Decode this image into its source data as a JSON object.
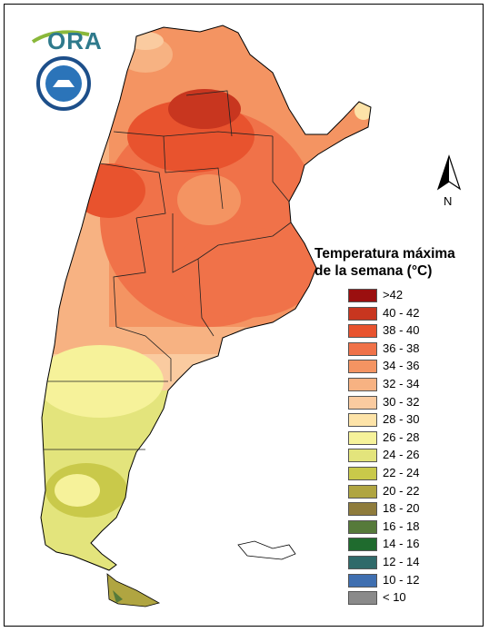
{
  "brand": {
    "logo_text": "ORA"
  },
  "legend": {
    "title_line1": "Temperatura máxima",
    "title_line2": "de la semana (°C)",
    "items": [
      {
        "label": ">42",
        "color": "#9b0f0f"
      },
      {
        "label": "40 - 42",
        "color": "#c8361f"
      },
      {
        "label": "38 - 40",
        "color": "#e8532e"
      },
      {
        "label": "36 - 38",
        "color": "#f07249"
      },
      {
        "label": "34 - 36",
        "color": "#f49462"
      },
      {
        "label": "32 - 34",
        "color": "#f7b282"
      },
      {
        "label": "30 - 32",
        "color": "#facba0"
      },
      {
        "label": "28 - 30",
        "color": "#fde3a8"
      },
      {
        "label": "26 - 28",
        "color": "#f6f29a"
      },
      {
        "label": "24 - 26",
        "color": "#e3e47c"
      },
      {
        "label": "22 - 24",
        "color": "#c9c94a"
      },
      {
        "label": "20 - 22",
        "color": "#b0a541"
      },
      {
        "label": "18 - 20",
        "color": "#8f7c3c"
      },
      {
        "label": "16 - 18",
        "color": "#567a3a"
      },
      {
        "label": "14 - 16",
        "color": "#1f6b2e"
      },
      {
        "label": "12 - 14",
        "color": "#2f6a6a"
      },
      {
        "label": "10 - 12",
        "color": "#3f6fb0"
      },
      {
        "label": "< 10",
        "color": "#8a8a8a"
      }
    ]
  },
  "north": {
    "label": "N"
  }
}
